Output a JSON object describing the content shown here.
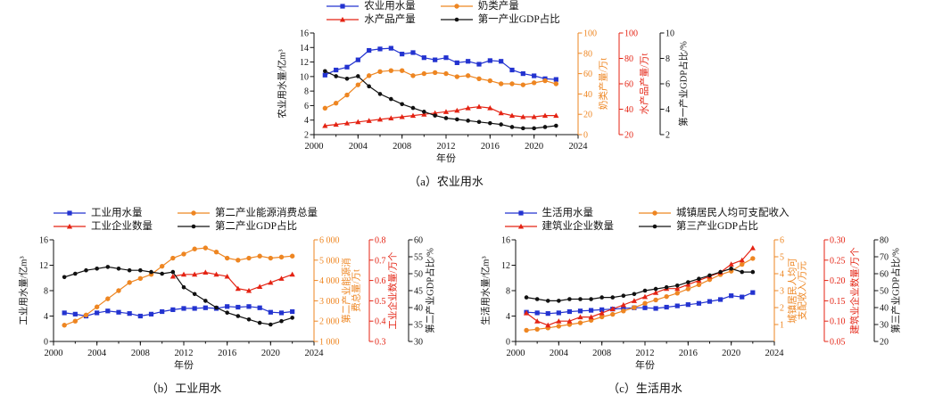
{
  "figure": {
    "background": "#ffffff",
    "colors": {
      "blue": "#2333d0",
      "orange": "#ee8622",
      "red": "#e42313",
      "black": "#111111"
    }
  },
  "chart_data": [
    {
      "id": "a",
      "type": "line",
      "caption": "（a）农业用水",
      "xlabel": "年份",
      "x_range": [
        2000,
        2024
      ],
      "x_ticks": [
        2000,
        2004,
        2008,
        2012,
        2016,
        2020,
        2024
      ],
      "x_tick_labels": [
        "2000",
        "2004",
        "2008",
        "2012",
        "2016",
        "2020",
        "2024"
      ],
      "left_axis": {
        "label": "农业用水量/亿m³",
        "color": "#111111",
        "range": [
          2,
          16
        ],
        "ticks": [
          2,
          4,
          6,
          8,
          10,
          12,
          14,
          16
        ],
        "tick_labels": [
          "2",
          "4",
          "6",
          "8",
          "10",
          "12",
          "14",
          "16"
        ]
      },
      "right_axes": [
        {
          "label": "奶类产量/万t",
          "color": "#ee8622",
          "range": [
            0,
            100
          ],
          "ticks": [
            0,
            20,
            40,
            60,
            80,
            100
          ],
          "tick_labels": [
            "0",
            "20",
            "40",
            "60",
            "80",
            "100"
          ]
        },
        {
          "label": "水产品产量/万t",
          "color": "#e42313",
          "range": [
            20,
            100
          ],
          "ticks": [
            20,
            40,
            60,
            80,
            100
          ],
          "tick_labels": [
            "20",
            "40",
            "60",
            "80",
            "100"
          ]
        },
        {
          "label": "第一产业GDP占比/%",
          "color": "#111111",
          "range": [
            2,
            10
          ],
          "ticks": [
            2,
            4,
            6,
            8,
            10
          ],
          "tick_labels": [
            "2",
            "4",
            "6",
            "8",
            "10"
          ]
        }
      ],
      "series": [
        {
          "name": "农业用水量",
          "color": "#2333d0",
          "marker": "square",
          "axis": "left",
          "years": [
            2001,
            2002,
            2003,
            2004,
            2005,
            2006,
            2007,
            2008,
            2009,
            2010,
            2011,
            2012,
            2013,
            2014,
            2015,
            2016,
            2017,
            2018,
            2019,
            2020,
            2021,
            2022
          ],
          "values": [
            10.2,
            10.9,
            11.3,
            12.3,
            13.6,
            13.8,
            13.9,
            13.1,
            13.3,
            12.6,
            12.3,
            12.6,
            11.9,
            12.1,
            11.7,
            12.2,
            12.1,
            10.9,
            10.4,
            10.1,
            9.7,
            9.6
          ]
        },
        {
          "name": "奶类产量",
          "color": "#ee8622",
          "marker": "circle",
          "axis": "r0",
          "years": [
            2001,
            2002,
            2003,
            2004,
            2005,
            2006,
            2007,
            2008,
            2009,
            2010,
            2011,
            2012,
            2013,
            2014,
            2015,
            2016,
            2017,
            2018,
            2019,
            2020,
            2021,
            2022
          ],
          "values": [
            26,
            31,
            39,
            49,
            58,
            62,
            63,
            63,
            58,
            60,
            61,
            60,
            57,
            58,
            55,
            53,
            50,
            50,
            49,
            51,
            53,
            50
          ]
        },
        {
          "name": "水产品产量",
          "color": "#e42313",
          "marker": "triangle",
          "axis": "r1",
          "years": [
            2001,
            2002,
            2003,
            2004,
            2005,
            2006,
            2007,
            2008,
            2009,
            2010,
            2011,
            2012,
            2013,
            2014,
            2015,
            2016,
            2017,
            2018,
            2019,
            2020,
            2021,
            2022
          ],
          "values": [
            27,
            28,
            29,
            30,
            31,
            32,
            33,
            34,
            35,
            36,
            37,
            38,
            39,
            41,
            42,
            41,
            37,
            35,
            34,
            34,
            35,
            35
          ]
        },
        {
          "name": "第一产业GDP占比",
          "color": "#111111",
          "marker": "dot",
          "axis": "r2",
          "years": [
            2001,
            2002,
            2003,
            2004,
            2005,
            2006,
            2007,
            2008,
            2009,
            2010,
            2011,
            2012,
            2013,
            2014,
            2015,
            2016,
            2017,
            2018,
            2019,
            2020,
            2021,
            2022
          ],
          "values": [
            7.0,
            6.6,
            6.4,
            6.6,
            5.8,
            5.2,
            4.8,
            4.4,
            4.1,
            3.8,
            3.5,
            3.3,
            3.2,
            3.1,
            3.0,
            2.9,
            2.8,
            2.6,
            2.5,
            2.5,
            2.6,
            2.7
          ]
        }
      ]
    },
    {
      "id": "b",
      "type": "line",
      "caption": "（b）工业用水",
      "xlabel": "年份",
      "x_range": [
        2000,
        2024
      ],
      "x_ticks": [
        2000,
        2004,
        2008,
        2012,
        2016,
        2020,
        2024
      ],
      "x_tick_labels": [
        "2000",
        "2004",
        "2008",
        "2012",
        "2016",
        "2020",
        "2024"
      ],
      "left_axis": {
        "label": "工业用水量/亿m³",
        "color": "#111111",
        "range": [
          0,
          16
        ],
        "ticks": [
          0,
          4,
          8,
          12,
          16
        ],
        "tick_labels": [
          "0",
          "4",
          "8",
          "12",
          "16"
        ]
      },
      "right_axes": [
        {
          "label": "第二产业能源消费总量/万t",
          "color": "#ee8622",
          "range": [
            1000,
            6000
          ],
          "ticks": [
            1000,
            2000,
            3000,
            4000,
            5000,
            6000
          ],
          "tick_labels": [
            "1 000",
            "2 000",
            "3 000",
            "4 000",
            "5 000",
            "6 000"
          ]
        },
        {
          "label": "工业企业数量/万个",
          "color": "#e42313",
          "range": [
            0.3,
            0.8
          ],
          "ticks": [
            0.3,
            0.4,
            0.5,
            0.6,
            0.7,
            0.8
          ],
          "tick_labels": [
            "0.3",
            "0.4",
            "0.5",
            "0.6",
            "0.7",
            "0.8"
          ]
        },
        {
          "label": "第二产业GDP占比/%",
          "color": "#111111",
          "range": [
            30,
            60
          ],
          "ticks": [
            30,
            35,
            40,
            45,
            50,
            55,
            60
          ],
          "tick_labels": [
            "30",
            "35",
            "40",
            "45",
            "50",
            "55",
            "60"
          ]
        }
      ],
      "series": [
        {
          "name": "工业用水量",
          "color": "#2333d0",
          "marker": "square",
          "axis": "left",
          "years": [
            2001,
            2002,
            2003,
            2004,
            2005,
            2006,
            2007,
            2008,
            2009,
            2010,
            2011,
            2012,
            2013,
            2014,
            2015,
            2016,
            2017,
            2018,
            2019,
            2020,
            2021,
            2022
          ],
          "values": [
            4.5,
            4.3,
            4.0,
            4.5,
            4.8,
            4.6,
            4.4,
            4.0,
            4.3,
            4.7,
            5.0,
            5.2,
            5.2,
            5.3,
            5.2,
            5.5,
            5.4,
            5.5,
            5.3,
            4.6,
            4.5,
            4.7
          ]
        },
        {
          "name": "第二产业能源消费总量",
          "color": "#ee8622",
          "marker": "circle",
          "axis": "r0",
          "years": [
            2001,
            2002,
            2003,
            2004,
            2005,
            2006,
            2007,
            2008,
            2009,
            2010,
            2011,
            2012,
            2013,
            2014,
            2015,
            2016,
            2017,
            2018,
            2019,
            2020,
            2021,
            2022
          ],
          "values": [
            1800,
            2000,
            2300,
            2700,
            3100,
            3500,
            3900,
            4100,
            4300,
            4700,
            5100,
            5300,
            5550,
            5600,
            5400,
            5100,
            5000,
            5100,
            5200,
            5100,
            5150,
            5200
          ]
        },
        {
          "name": "工业企业数量",
          "color": "#e42313",
          "marker": "triangle",
          "axis": "r1",
          "years": [
            2011,
            2012,
            2013,
            2014,
            2015,
            2016,
            2017,
            2018,
            2019,
            2020,
            2021,
            2022
          ],
          "values": [
            0.62,
            0.63,
            0.63,
            0.64,
            0.63,
            0.62,
            0.56,
            0.55,
            0.57,
            0.59,
            0.61,
            0.63
          ]
        },
        {
          "name": "第二产业GDP占比",
          "color": "#111111",
          "marker": "dot",
          "axis": "r2",
          "years": [
            2001,
            2002,
            2003,
            2004,
            2005,
            2006,
            2007,
            2008,
            2009,
            2010,
            2011,
            2012,
            2013,
            2014,
            2015,
            2016,
            2017,
            2018,
            2019,
            2020,
            2021,
            2022
          ],
          "values": [
            49,
            50,
            51,
            51.5,
            52,
            51.5,
            51,
            51,
            50.5,
            50,
            50.5,
            46,
            44,
            42,
            40,
            38.5,
            37.5,
            36.5,
            35.5,
            35,
            36,
            37
          ]
        }
      ]
    },
    {
      "id": "c",
      "type": "line",
      "caption": "（c）生活用水",
      "xlabel": "年份",
      "x_range": [
        2000,
        2024
      ],
      "x_ticks": [
        2000,
        2004,
        2008,
        2012,
        2016,
        2020,
        2024
      ],
      "x_tick_labels": [
        "2000",
        "2004",
        "2008",
        "2012",
        "2016",
        "2020",
        "2024"
      ],
      "left_axis": {
        "label": "生活用水量/亿m³",
        "color": "#111111",
        "range": [
          0,
          16
        ],
        "ticks": [
          0,
          4,
          8,
          12,
          16
        ],
        "tick_labels": [
          "0",
          "4",
          "8",
          "12",
          "16"
        ]
      },
      "right_axes": [
        {
          "label": "城镇居民人均可支配收入/万元",
          "color": "#ee8622",
          "range": [
            0,
            6
          ],
          "ticks": [
            1,
            2,
            3,
            4,
            5,
            6
          ],
          "tick_labels": [
            "1",
            "2",
            "3",
            "4",
            "5",
            "6"
          ]
        },
        {
          "label": "建筑业企业数量/万个",
          "color": "#e42313",
          "range": [
            0.05,
            0.3
          ],
          "ticks": [
            0.05,
            0.1,
            0.15,
            0.2,
            0.25,
            0.3
          ],
          "tick_labels": [
            "0.05",
            "0.10",
            "0.15",
            "0.20",
            "0.25",
            "0.30"
          ]
        },
        {
          "label": "第三产业GDP占比/%",
          "color": "#111111",
          "range": [
            20,
            80
          ],
          "ticks": [
            20,
            30,
            40,
            50,
            60,
            70,
            80
          ],
          "tick_labels": [
            "20",
            "30",
            "40",
            "50",
            "60",
            "70",
            "80"
          ]
        }
      ],
      "series": [
        {
          "name": "生活用水量",
          "color": "#2333d0",
          "marker": "square",
          "axis": "left",
          "years": [
            2001,
            2002,
            2003,
            2004,
            2005,
            2006,
            2007,
            2008,
            2009,
            2010,
            2011,
            2012,
            2013,
            2014,
            2015,
            2016,
            2017,
            2018,
            2019,
            2020,
            2021,
            2022
          ],
          "values": [
            4.6,
            4.5,
            4.4,
            4.5,
            4.7,
            4.8,
            4.9,
            5.0,
            5.1,
            5.2,
            5.3,
            5.3,
            5.2,
            5.4,
            5.6,
            5.8,
            6.0,
            6.3,
            6.6,
            7.2,
            7.0,
            7.7
          ]
        },
        {
          "name": "城镇居民人均可支配收入",
          "color": "#ee8622",
          "marker": "circle",
          "axis": "r0",
          "years": [
            2001,
            2002,
            2003,
            2004,
            2005,
            2006,
            2007,
            2008,
            2009,
            2010,
            2011,
            2012,
            2013,
            2014,
            2015,
            2016,
            2017,
            2018,
            2019,
            2020,
            2021,
            2022
          ],
          "values": [
            0.66,
            0.72,
            0.8,
            0.9,
            1.0,
            1.1,
            1.25,
            1.45,
            1.6,
            1.8,
            2.0,
            2.25,
            2.45,
            2.65,
            2.85,
            3.1,
            3.35,
            3.65,
            3.95,
            4.15,
            4.55,
            4.9
          ]
        },
        {
          "name": "建筑业企业数量",
          "color": "#e42313",
          "marker": "triangle",
          "axis": "r1",
          "years": [
            2001,
            2002,
            2003,
            2004,
            2005,
            2006,
            2007,
            2008,
            2009,
            2010,
            2011,
            2012,
            2013,
            2014,
            2015,
            2016,
            2017,
            2018,
            2019,
            2020,
            2021,
            2022
          ],
          "values": [
            0.12,
            0.1,
            0.09,
            0.1,
            0.1,
            0.11,
            0.11,
            0.12,
            0.13,
            0.14,
            0.15,
            0.16,
            0.17,
            0.18,
            0.18,
            0.19,
            0.2,
            0.21,
            0.22,
            0.24,
            0.25,
            0.28
          ]
        },
        {
          "name": "第三产业GDP占比",
          "color": "#111111",
          "marker": "dot",
          "axis": "r2",
          "years": [
            2001,
            2002,
            2003,
            2004,
            2005,
            2006,
            2007,
            2008,
            2009,
            2010,
            2011,
            2012,
            2013,
            2014,
            2015,
            2016,
            2017,
            2018,
            2019,
            2020,
            2021,
            2022
          ],
          "values": [
            46,
            45,
            44,
            44,
            45,
            45,
            45,
            46,
            46,
            47,
            48,
            50,
            51,
            52,
            53,
            55,
            57,
            59,
            61,
            63,
            61,
            61
          ]
        }
      ]
    }
  ]
}
